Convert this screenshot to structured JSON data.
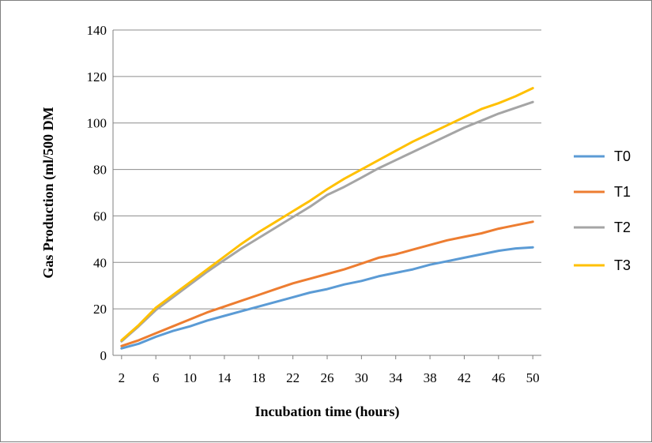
{
  "chart_data": {
    "type": "line",
    "xlabel": "Incubation  time  (hours)",
    "ylabel": "Gas  Production  (ml/500 DM",
    "x": [
      2,
      4,
      6,
      8,
      10,
      12,
      14,
      16,
      18,
      20,
      22,
      24,
      26,
      28,
      30,
      32,
      34,
      36,
      38,
      40,
      42,
      44,
      46,
      48,
      50
    ],
    "x_tick_labels": [
      "2",
      "6",
      "10",
      "14",
      "18",
      "22",
      "26",
      "30",
      "34",
      "38",
      "42",
      "46",
      "50"
    ],
    "y_tick_labels": [
      "0",
      "20",
      "40",
      "60",
      "80",
      "100",
      "120",
      "140"
    ],
    "ylim": [
      0,
      140
    ],
    "grid": true,
    "legend_position": "right",
    "series": [
      {
        "name": "T0",
        "color": "#5b9bd5",
        "values": [
          3,
          5,
          8,
          10.5,
          12.5,
          15,
          17,
          19,
          21,
          23,
          25,
          27,
          28.5,
          30.5,
          32,
          34,
          35.5,
          37,
          39,
          40.5,
          42,
          43.5,
          45,
          46,
          46.5
        ]
      },
      {
        "name": "T1",
        "color": "#ed7d31",
        "values": [
          4,
          6.5,
          9.5,
          12.5,
          15.5,
          18.5,
          21,
          23.5,
          26,
          28.5,
          31,
          33,
          35,
          37,
          39.5,
          42,
          43.5,
          45.5,
          47.5,
          49.5,
          51,
          52.5,
          54.5,
          56,
          57.5
        ]
      },
      {
        "name": "T2",
        "color": "#a5a5a5",
        "values": [
          6,
          12.5,
          19.5,
          25,
          30.5,
          36,
          41,
          46,
          50.5,
          55,
          59.5,
          64,
          69,
          72.5,
          76.5,
          80.5,
          84,
          87.5,
          91,
          94.5,
          98,
          101,
          104,
          106.5,
          109
        ]
      },
      {
        "name": "T3",
        "color": "#ffc000",
        "values": [
          6.5,
          13,
          20.5,
          26,
          31.5,
          37,
          42.5,
          48,
          53,
          57.5,
          62,
          66.5,
          71.5,
          76,
          80,
          84,
          88,
          92,
          95.5,
          99,
          102.5,
          106,
          108.5,
          111.5,
          115
        ]
      }
    ]
  }
}
